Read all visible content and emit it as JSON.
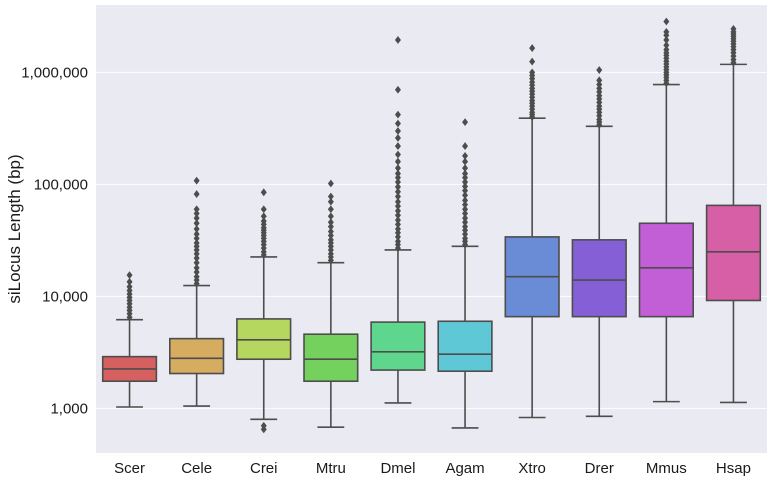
{
  "chart_data": {
    "type": "box",
    "title": "",
    "xlabel": "",
    "ylabel": "siLocus Length (bp)",
    "yscale": "log",
    "ylim": [
      400,
      4000000
    ],
    "yticks": [
      1000,
      10000,
      100000,
      1000000
    ],
    "ytick_labels": [
      "1,000",
      "10,000",
      "100,000",
      "1,000,000"
    ],
    "grid": true,
    "categories": [
      "Scer",
      "Cele",
      "Crei",
      "Mtru",
      "Dmel",
      "Agam",
      "Xtro",
      "Drer",
      "Mmus",
      "Hsap"
    ],
    "colors": [
      "#d65f5f",
      "#d5ac60",
      "#b5d65f",
      "#75d15d",
      "#5fd68e",
      "#5fc8d6",
      "#6a8bd6",
      "#855fd6",
      "#c25fd6",
      "#d65fa6"
    ],
    "line_color": "#4d4d4d",
    "background": "#eaeaf2",
    "boxes": [
      {
        "name": "Scer",
        "whislo": 1030,
        "q1": 1750,
        "med": 2250,
        "q3": 2900,
        "whishi": 6200,
        "fliers": [
          6500,
          7000,
          7500,
          8000,
          8600,
          9200,
          9800,
          10500,
          11300,
          12200,
          13500,
          15500
        ]
      },
      {
        "name": "Cele",
        "whislo": 1050,
        "q1": 2050,
        "med": 2800,
        "q3": 4200,
        "whishi": 12500,
        "fliers": [
          13000,
          14000,
          15000,
          16500,
          18000,
          20000,
          22000,
          24000,
          26000,
          28000,
          30000,
          33000,
          36000,
          40000,
          45000,
          50000,
          55000,
          60000,
          82000,
          108000
        ]
      },
      {
        "name": "Crei",
        "whislo": 800,
        "q1": 2750,
        "med": 4100,
        "q3": 6300,
        "whishi": 22500,
        "fliers": [
          650,
          700,
          23500,
          25000,
          27000,
          29000,
          31000,
          33000,
          35000,
          37000,
          39000,
          41000,
          44000,
          47000,
          52000,
          60000,
          85000
        ]
      },
      {
        "name": "Mtru",
        "whislo": 680,
        "q1": 1750,
        "med": 2750,
        "q3": 4600,
        "whishi": 20000,
        "fliers": [
          21000,
          22500,
          24000,
          26000,
          28000,
          30000,
          32000,
          35000,
          38000,
          42000,
          46000,
          52000,
          60000,
          70000,
          78000,
          102000
        ]
      },
      {
        "name": "Dmel",
        "whislo": 1120,
        "q1": 2200,
        "med": 3200,
        "q3": 5900,
        "whishi": 26000,
        "fliers": [
          27000,
          29000,
          31000,
          34000,
          37000,
          40000,
          44000,
          48000,
          53000,
          58000,
          64000,
          70000,
          78000,
          86000,
          95000,
          105000,
          115000,
          125000,
          140000,
          160000,
          185000,
          220000,
          260000,
          300000,
          350000,
          420000,
          700000,
          1950000
        ]
      },
      {
        "name": "Agam",
        "whislo": 670,
        "q1": 2150,
        "med": 3050,
        "q3": 6000,
        "whishi": 28000,
        "fliers": [
          29000,
          31000,
          33000,
          36000,
          39000,
          42000,
          46000,
          50000,
          55000,
          60000,
          66000,
          72000,
          80000,
          88000,
          96000,
          105000,
          115000,
          125000,
          140000,
          160000,
          180000,
          220000,
          360000
        ]
      },
      {
        "name": "Xtro",
        "whislo": 830,
        "q1": 6600,
        "med": 15000,
        "q3": 34000,
        "whishi": 390000,
        "fliers": [
          400000,
          420000,
          440000,
          470000,
          500000,
          530000,
          560000,
          600000,
          640000,
          680000,
          720000,
          770000,
          820000,
          880000,
          940000,
          1000000,
          1250000,
          1650000
        ]
      },
      {
        "name": "Drer",
        "whislo": 850,
        "q1": 6600,
        "med": 14000,
        "q3": 32000,
        "whishi": 330000,
        "fliers": [
          340000,
          360000,
          380000,
          410000,
          440000,
          470000,
          500000,
          540000,
          580000,
          620000,
          670000,
          720000,
          780000,
          850000,
          1050000
        ]
      },
      {
        "name": "Mmus",
        "whislo": 1150,
        "q1": 6600,
        "med": 18000,
        "q3": 45000,
        "whishi": 780000,
        "fliers": [
          800000,
          850000,
          900000,
          950000,
          1000000,
          1060000,
          1120000,
          1190000,
          1260000,
          1340000,
          1420000,
          1500000,
          1600000,
          1750000,
          1950000,
          2150000,
          2300000,
          2850000
        ]
      },
      {
        "name": "Hsap",
        "whislo": 1130,
        "q1": 9200,
        "med": 25000,
        "q3": 65000,
        "whishi": 1180000,
        "fliers": [
          1220000,
          1300000,
          1400000,
          1500000,
          1600000,
          1700000,
          1800000,
          1900000,
          2000000,
          2100000,
          2200000,
          2300000,
          2450000
        ]
      }
    ]
  }
}
